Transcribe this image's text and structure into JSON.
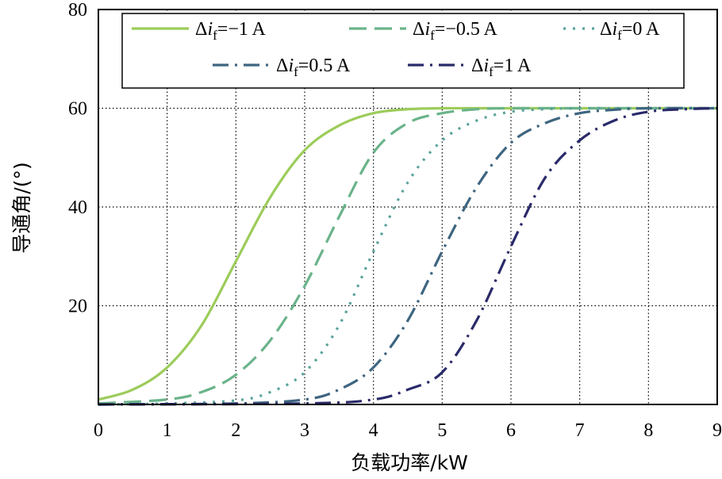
{
  "chart_data": {
    "type": "line",
    "title": "",
    "xlabel": "负载功率/kW",
    "ylabel": "导通角/(°)",
    "xlim": [
      0,
      9
    ],
    "ylim": [
      0,
      80
    ],
    "xticks": [
      "0",
      "1",
      "2",
      "3",
      "4",
      "5",
      "6",
      "7",
      "8",
      "9"
    ],
    "yticks": [
      "20",
      "40",
      "60",
      "80"
    ],
    "grid": true,
    "legend_position": "top",
    "series": [
      {
        "name": "Δi_f=−1 A",
        "legend": {
          "pre": "Δ",
          "var": "i",
          "sub": "f",
          "post": "=−1 A"
        },
        "color": "#9ccc5a",
        "style": "solid",
        "x": [
          0,
          0.5,
          1,
          1.5,
          2,
          2.5,
          3,
          3.5,
          4,
          4.5,
          5,
          5.5,
          6,
          7,
          8,
          9
        ],
        "y": [
          1,
          3,
          7.5,
          16,
          29,
          42,
          51.5,
          56.5,
          59,
          59.8,
          60,
          60,
          60,
          60,
          60,
          60
        ]
      },
      {
        "name": "Δi_f=−0.5 A",
        "legend": {
          "pre": "Δ",
          "var": "i",
          "sub": "f",
          "post": "=−0.5 A"
        },
        "color": "#6ab38a",
        "style": "dashed",
        "x": [
          0,
          1,
          1.5,
          2,
          2.5,
          3,
          3.5,
          4,
          4.5,
          5,
          5.5,
          6,
          7,
          8,
          9
        ],
        "y": [
          0.2,
          1,
          2.5,
          6,
          13,
          24,
          38,
          51,
          57,
          59,
          59.8,
          60,
          60,
          60,
          60
        ]
      },
      {
        "name": "Δi_f=0 A",
        "legend": {
          "pre": "Δ",
          "var": "i",
          "sub": "f",
          "post": "=0 A"
        },
        "color": "#5aa39a",
        "style": "dotted",
        "x": [
          0,
          1,
          2,
          2.5,
          3,
          3.5,
          4,
          4.5,
          5,
          5.5,
          6,
          6.5,
          7,
          8,
          9
        ],
        "y": [
          0,
          0.2,
          0.8,
          2.5,
          6.5,
          16,
          31,
          45,
          53.5,
          57.5,
          59.3,
          59.8,
          60,
          60,
          60
        ]
      },
      {
        "name": "Δi_f=0.5 A",
        "legend": {
          "pre": "Δ",
          "var": "i",
          "sub": "f",
          "post": "=0.5 A"
        },
        "color": "#3e6580",
        "style": "dashdot",
        "x": [
          0,
          2,
          3,
          3.5,
          4,
          4.5,
          5,
          5.5,
          6,
          6.5,
          7,
          7.5,
          8,
          9
        ],
        "y": [
          0,
          0.2,
          1,
          3,
          7.5,
          17,
          31,
          44,
          53,
          57,
          59,
          59.7,
          60,
          60
        ]
      },
      {
        "name": "Δi_f=1 A",
        "legend": {
          "pre": "Δ",
          "var": "i",
          "sub": "f",
          "post": "=1 A"
        },
        "color": "#2a2a6a",
        "style": "dashdot",
        "x": [
          0,
          3,
          4,
          4.5,
          5,
          5.5,
          6,
          6.5,
          7,
          7.5,
          8,
          8.5,
          9
        ],
        "y": [
          0,
          0.2,
          1,
          3,
          6.5,
          17,
          32,
          46,
          53.5,
          57.5,
          59.3,
          59.8,
          60
        ]
      }
    ]
  }
}
